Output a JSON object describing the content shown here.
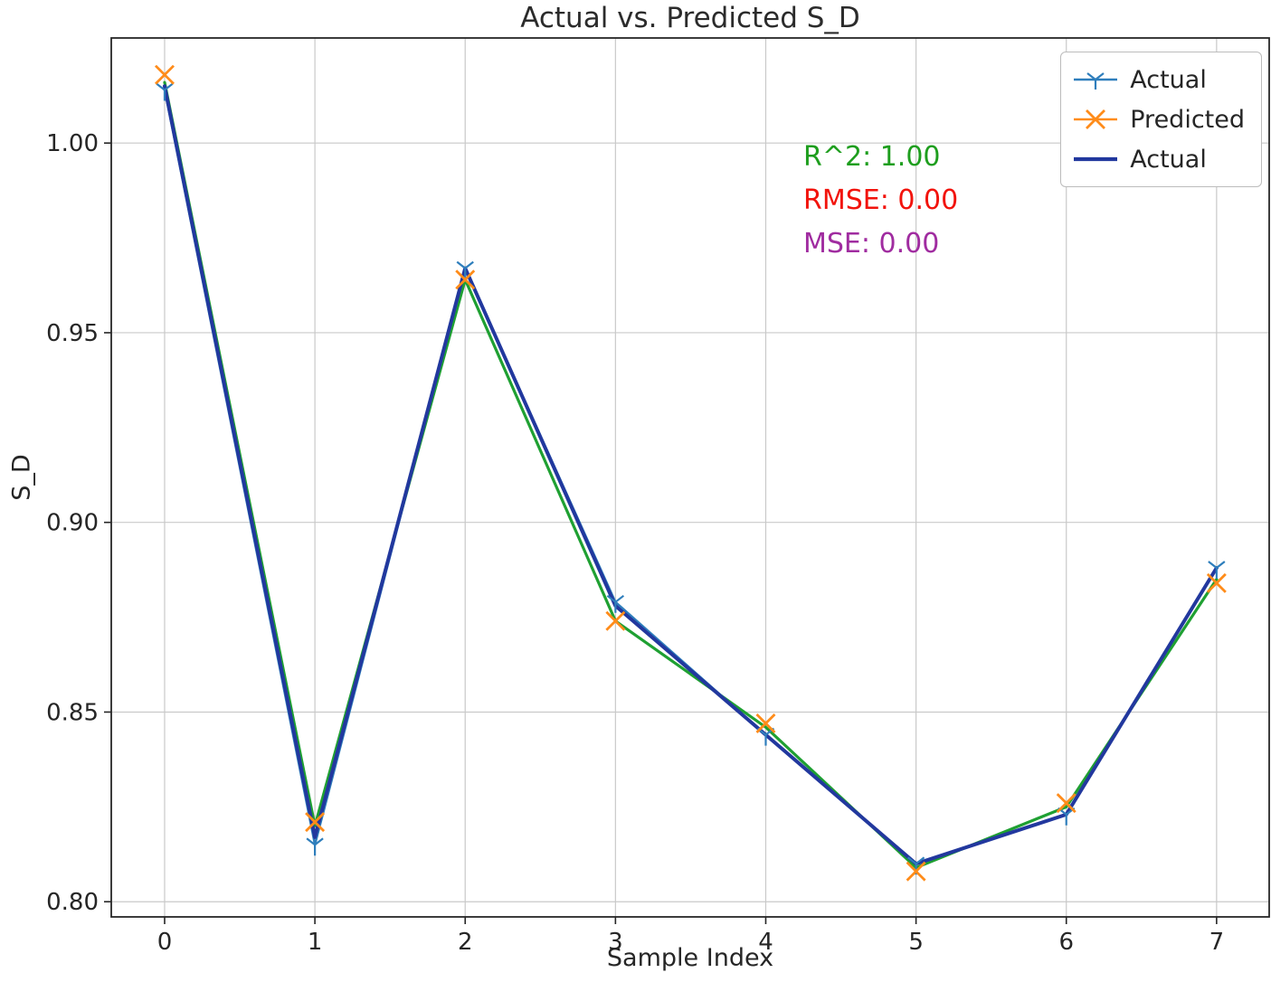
{
  "chart_data": {
    "type": "line",
    "title": "Actual vs. Predicted S_D",
    "xlabel": "Sample Index",
    "ylabel": "S_D",
    "grid": true,
    "legend_position": "upper right",
    "x": [
      0,
      1,
      2,
      3,
      4,
      5,
      6,
      7
    ],
    "xticks": [
      0,
      1,
      2,
      3,
      4,
      5,
      6,
      7
    ],
    "yticks": [
      0.8,
      0.85,
      0.9,
      0.95,
      1.0
    ],
    "xlim": [
      -0.355,
      7.35
    ],
    "ylim": [
      0.796,
      1.0277
    ],
    "series": [
      {
        "name": "Actual",
        "color": "#1fa032",
        "line": true,
        "width": 3.2,
        "marker": "none",
        "values": [
          1.016,
          0.82,
          0.964,
          0.874,
          0.846,
          0.809,
          0.825,
          0.885
        ]
      },
      {
        "name": "Actual",
        "color": "#2e7ebc",
        "line": true,
        "width": 2.4,
        "marker": "tri",
        "values": [
          1.014,
          0.815,
          0.967,
          0.879,
          0.844,
          0.81,
          0.823,
          0.888
        ]
      },
      {
        "name": "Actual",
        "color": "#22389e",
        "line": true,
        "width": 4,
        "marker": "none",
        "values": [
          1.015,
          0.817,
          0.967,
          0.878,
          0.844,
          0.81,
          0.823,
          0.888
        ]
      },
      {
        "name": "Predicted",
        "color": "#ff8c1a",
        "line": false,
        "width": 0,
        "marker": "x",
        "values": [
          1.018,
          0.821,
          0.964,
          0.874,
          0.847,
          0.808,
          0.826,
          0.884
        ]
      }
    ],
    "legend": [
      {
        "label": "Actual",
        "color": "#2e7ebc",
        "icon": "line-tri"
      },
      {
        "label": "Predicted",
        "color": "#ff8c1a",
        "icon": "line-x"
      },
      {
        "label": "Actual",
        "color": "#22389e",
        "icon": "line-thick"
      }
    ],
    "annotations": [
      {
        "text": "R^2: 1.00",
        "color": "#1e9e1e"
      },
      {
        "text": "RMSE: 0.00",
        "color": "#f2130c"
      },
      {
        "text": "MSE: 0.00",
        "color": "#a02ca0"
      }
    ]
  }
}
